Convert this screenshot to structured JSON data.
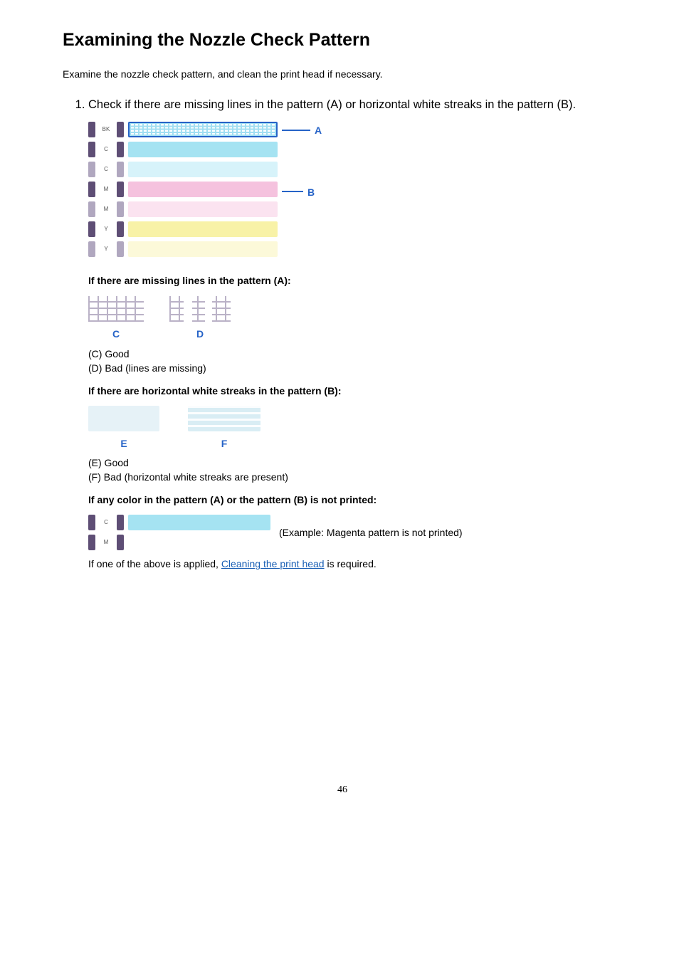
{
  "title": "Examining the Nozzle Check Pattern",
  "intro": "Examine the nozzle check pattern, and clean the print head if necessary.",
  "step1": "Check if there are missing lines in the pattern (A) or horizontal white streaks in the pattern (B).",
  "fig1": {
    "labelA": "A",
    "labelB": "B",
    "line_color": "#2663c7",
    "swatch_dark": "#5e4e75",
    "swatch_light": "#b0a7bf",
    "grid_color": "#a2dff2",
    "rows": [
      {
        "name": "BK",
        "block_color": "#ffffff",
        "is_grid": true,
        "swatch": "dark"
      },
      {
        "name": "C",
        "block_color": "#a5e3f2",
        "swatch": "dark"
      },
      {
        "name": "C",
        "block_color": "#d7f3fa",
        "swatch": "light"
      },
      {
        "name": "M",
        "block_color": "#f5c2de",
        "swatch": "dark"
      },
      {
        "name": "M",
        "block_color": "#fbe3f0",
        "swatch": "light"
      },
      {
        "name": "Y",
        "block_color": "#f8f2a7",
        "swatch": "dark"
      },
      {
        "name": "Y",
        "block_color": "#fcf9d9",
        "swatch": "light"
      }
    ]
  },
  "sec2": {
    "head": "If there are missing lines in the pattern (A):",
    "labelC": "C",
    "labelD": "D",
    "textC": "(C) Good",
    "textD": "(D) Bad (lines are missing)",
    "grid_color": "#bab2c7"
  },
  "sec3": {
    "head": "If there are horizontal white streaks in the pattern (B):",
    "labelE": "E",
    "labelF": "F",
    "textE": "(E) Good",
    "textF": "(F) Bad (horizontal white streaks are present)",
    "colorE": "#e6f2f7",
    "colorF_a": "#d9edf4",
    "colorF_b": "#fbfdfe"
  },
  "sec4": {
    "head": "If any color in the pattern (A) or the pattern (B) is not printed:",
    "rows": [
      {
        "name": "C",
        "block_color": "#a5e3f2",
        "swatch": "dark"
      },
      {
        "name": "M",
        "block_color": "#ffffff",
        "swatch": "dark"
      }
    ],
    "example": "(Example: Magenta pattern is not printed)"
  },
  "closing": {
    "before": "If one of the above is applied, ",
    "link": "Cleaning the print head",
    "after": " is required."
  },
  "page_number": "46"
}
